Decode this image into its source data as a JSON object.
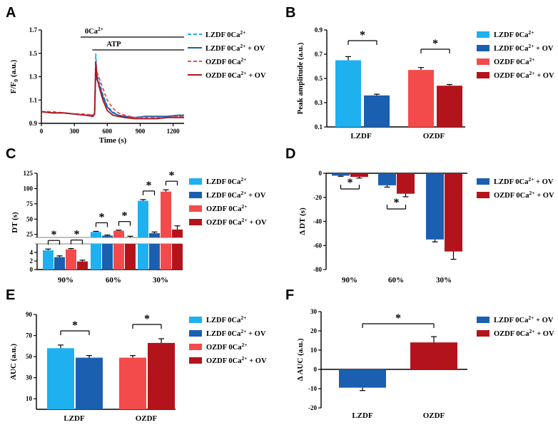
{
  "colors": {
    "lzdf": "#1fb0f0",
    "lzdf_ov": "#1a5fb0",
    "ozdf": "#f34b4b",
    "ozdf_ov": "#b3141b"
  },
  "legend_labels": {
    "lzdf": "LZDF 0Ca2+",
    "lzdf_ov": "LZDF 0Ca2+ + OV",
    "ozdf": "OZDF 0Ca2+",
    "ozdf_ov": "OZDF 0Ca2+ + OV"
  },
  "chart_data": [
    {
      "panel": "A",
      "type": "line",
      "xlabel": "Time (s)",
      "ylabel": "F/F0 (a.u.)",
      "xlim": [
        0,
        1300
      ],
      "ylim": [
        0.9,
        1.7
      ],
      "xticks": [
        "0",
        "300",
        "600",
        "900",
        "1200"
      ],
      "yticks": [
        "0.9",
        "1.1",
        "1.3",
        "1.5",
        "1.7"
      ],
      "annotations": {
        "zero_ca": "0Ca2+",
        "atp": "ATP"
      },
      "bars": {
        "zero_ca_start": 370,
        "atp_start": 490
      },
      "series": [
        {
          "key": "lzdf",
          "style": "dashed",
          "peak": 1.5,
          "x": [
            0,
            100,
            200,
            300,
            400,
            470,
            485,
            495,
            505,
            530,
            560,
            600,
            650,
            700,
            760,
            850,
            950,
            1050,
            1150,
            1250,
            1300
          ],
          "y": [
            1.0,
            1.0,
            0.99,
            0.98,
            0.97,
            0.97,
            0.98,
            1.5,
            1.32,
            1.25,
            1.15,
            1.05,
            1.0,
            0.97,
            0.96,
            0.95,
            0.94,
            0.95,
            0.95,
            0.96,
            0.96
          ]
        },
        {
          "key": "lzdf_ov",
          "style": "solid",
          "peak": 1.33,
          "x": [
            0,
            100,
            200,
            300,
            400,
            470,
            485,
            495,
            505,
            530,
            560,
            600,
            650,
            700,
            760,
            850,
            950,
            1050,
            1150,
            1250,
            1300
          ],
          "y": [
            1.0,
            0.99,
            0.99,
            0.98,
            0.97,
            0.97,
            0.98,
            1.33,
            1.28,
            1.22,
            1.13,
            1.04,
            0.99,
            0.97,
            0.96,
            0.95,
            0.96,
            0.96,
            0.96,
            0.97,
            0.97
          ]
        },
        {
          "key": "ozdf",
          "style": "dashed",
          "peak": 1.42,
          "x": [
            0,
            100,
            200,
            300,
            400,
            470,
            485,
            495,
            505,
            530,
            560,
            600,
            650,
            700,
            760,
            850,
            950,
            1050,
            1150,
            1250,
            1300
          ],
          "y": [
            1.0,
            1.0,
            0.99,
            0.98,
            0.98,
            0.97,
            0.99,
            1.42,
            1.34,
            1.28,
            1.2,
            1.1,
            1.03,
            0.99,
            0.97,
            0.95,
            0.95,
            0.95,
            0.95,
            0.96,
            0.96
          ]
        },
        {
          "key": "ozdf_ov",
          "style": "solid",
          "peak": 1.43,
          "x": [
            0,
            100,
            200,
            300,
            400,
            470,
            485,
            495,
            505,
            530,
            560,
            600,
            650,
            700,
            760,
            850,
            950,
            1050,
            1150,
            1250,
            1300
          ],
          "y": [
            1.0,
            0.99,
            0.99,
            0.98,
            0.97,
            0.96,
            0.98,
            1.43,
            1.3,
            1.2,
            1.1,
            1.01,
            0.97,
            0.96,
            0.95,
            0.94,
            0.94,
            0.94,
            0.95,
            0.95,
            0.95
          ]
        }
      ]
    },
    {
      "panel": "B",
      "type": "bar",
      "ylabel": "Peak amplitude (a.u.)",
      "ylim": [
        0.1,
        0.9
      ],
      "yticks": [
        "0.1",
        "0.3",
        "0.5",
        "0.7",
        "0.9"
      ],
      "groups": [
        "LZDF",
        "OZDF"
      ],
      "series": [
        {
          "key": "lzdf",
          "group": 0,
          "value": 0.65,
          "err": 0.03
        },
        {
          "key": "lzdf_ov",
          "group": 0,
          "value": 0.36,
          "err": 0.01
        },
        {
          "key": "ozdf",
          "group": 1,
          "value": 0.57,
          "err": 0.02
        },
        {
          "key": "ozdf_ov",
          "group": 1,
          "value": 0.44,
          "err": 0.01
        }
      ],
      "significance": [
        {
          "group": 0,
          "label": "*"
        },
        {
          "group": 1,
          "label": "*"
        }
      ]
    },
    {
      "panel": "C",
      "type": "bar",
      "ylabel": "DT (s)",
      "upper_ylim": [
        20,
        125
      ],
      "upper_yticks": [
        "25",
        "50",
        "75",
        "100",
        "125"
      ],
      "lower_ylim": [
        0,
        6
      ],
      "lower_yticks": [
        "0",
        "2",
        "4"
      ],
      "groups": [
        "90%",
        "60%",
        "30%"
      ],
      "series": [
        {
          "key": "lzdf",
          "values": [
            4.5,
            29,
            80
          ]
        },
        {
          "key": "lzdf_ov",
          "values": [
            2.9,
            23,
            27
          ]
        },
        {
          "key": "ozdf",
          "values": [
            4.7,
            31,
            95
          ]
        },
        {
          "key": "ozdf_ov",
          "values": [
            1.9,
            20,
            33
          ]
        }
      ],
      "errors": [
        [
          0.3,
          1.0,
          2.0
        ],
        [
          0.3,
          1.0,
          2.0
        ],
        [
          0.2,
          1.0,
          3.0
        ],
        [
          0.3,
          2.0,
          6.0
        ]
      ],
      "significance": [
        "*",
        "*",
        "*",
        "*",
        "*",
        "*"
      ]
    },
    {
      "panel": "D",
      "type": "bar",
      "ylabel": "Δ DT (s)",
      "ylim": [
        -80,
        0
      ],
      "yticks": [
        "0",
        "-20",
        "-40",
        "-60",
        "-80"
      ],
      "groups": [
        "90%",
        "60%",
        "30%"
      ],
      "series": [
        {
          "key": "lzdf_ov",
          "values": [
            -2,
            -10,
            -55
          ],
          "errors": [
            0.5,
            1.5,
            2.0
          ]
        },
        {
          "key": "ozdf_ov",
          "values": [
            -3,
            -17,
            -65
          ],
          "errors": [
            1.0,
            2.5,
            6.5
          ]
        }
      ],
      "significance": [
        {
          "group": 0,
          "label": "*"
        },
        {
          "group": 1,
          "label": "*"
        }
      ]
    },
    {
      "panel": "E",
      "type": "bar",
      "ylabel": "AUC (a.u.)",
      "ylim": [
        0,
        90
      ],
      "yticks": [
        "10",
        "30",
        "50",
        "70",
        "90"
      ],
      "groups": [
        "LZDF",
        "OZDF"
      ],
      "series": [
        {
          "key": "lzdf",
          "group": 0,
          "value": 58,
          "err": 3
        },
        {
          "key": "lzdf_ov",
          "group": 0,
          "value": 49,
          "err": 2
        },
        {
          "key": "ozdf",
          "group": 1,
          "value": 49,
          "err": 2
        },
        {
          "key": "ozdf_ov",
          "group": 1,
          "value": 63,
          "err": 4
        }
      ],
      "significance": [
        {
          "group": 0,
          "label": "*"
        },
        {
          "group": 1,
          "label": "*"
        }
      ]
    },
    {
      "panel": "F",
      "type": "bar",
      "ylabel": "Δ AUC (a.u.)",
      "ylim": [
        -20,
        30
      ],
      "yticks": [
        "30",
        "20",
        "10",
        "0",
        "-10",
        "-20"
      ],
      "groups": [
        "LZDF",
        "OZDF"
      ],
      "series": [
        {
          "key": "lzdf_ov",
          "group": 0,
          "value": -9.5,
          "err": 1.5
        },
        {
          "key": "ozdf_ov",
          "group": 1,
          "value": 14,
          "err": 3
        }
      ],
      "significance": [
        {
          "label": "*"
        }
      ]
    }
  ]
}
